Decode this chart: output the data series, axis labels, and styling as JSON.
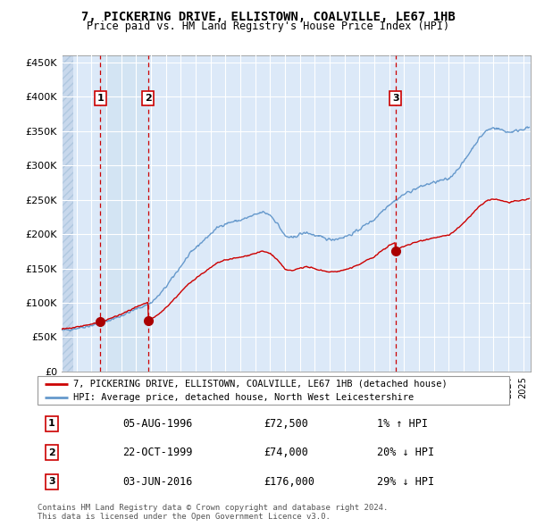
{
  "title": "7, PICKERING DRIVE, ELLISTOWN, COALVILLE, LE67 1HB",
  "subtitle": "Price paid vs. HM Land Registry's House Price Index (HPI)",
  "ylim": [
    0,
    460000
  ],
  "yticks": [
    0,
    50000,
    100000,
    150000,
    200000,
    250000,
    300000,
    350000,
    400000,
    450000
  ],
  "ytick_labels": [
    "£0",
    "£50K",
    "£100K",
    "£150K",
    "£200K",
    "£250K",
    "£300K",
    "£350K",
    "£400K",
    "£450K"
  ],
  "xlim_start": 1994.0,
  "xlim_end": 2025.5,
  "plot_bg_color": "#dce9f8",
  "hatch_bg_color": "#c8d8ec",
  "grid_color": "#ffffff",
  "red_line_color": "#cc0000",
  "blue_line_color": "#6699cc",
  "marker_color": "#aa0000",
  "vline_color": "#cc0000",
  "transaction_label_border": "#cc0000",
  "transactions": [
    {
      "id": 1,
      "date": 1996.59,
      "price": 72500,
      "label": "1"
    },
    {
      "id": 2,
      "date": 1999.81,
      "price": 74000,
      "label": "2"
    },
    {
      "id": 3,
      "date": 2016.42,
      "price": 176000,
      "label": "3"
    }
  ],
  "legend_entries": [
    "7, PICKERING DRIVE, ELLISTOWN, COALVILLE, LE67 1HB (detached house)",
    "HPI: Average price, detached house, North West Leicestershire"
  ],
  "table_data": [
    {
      "num": "1",
      "date": "05-AUG-1996",
      "price": "£72,500",
      "hpi": "1% ↑ HPI"
    },
    {
      "num": "2",
      "date": "22-OCT-1999",
      "price": "£74,000",
      "hpi": "20% ↓ HPI"
    },
    {
      "num": "3",
      "date": "03-JUN-2016",
      "price": "£176,000",
      "hpi": "29% ↓ HPI"
    }
  ],
  "footnote": "Contains HM Land Registry data © Crown copyright and database right 2024.\nThis data is licensed under the Open Government Licence v3.0."
}
